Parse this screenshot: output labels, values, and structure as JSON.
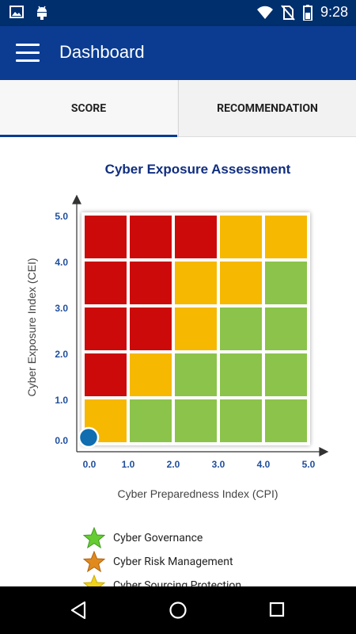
{
  "status_bar": {
    "time": "9:28",
    "icons": [
      "image-icon",
      "android-icon",
      "wifi-icon",
      "no-sim-icon",
      "battery-icon"
    ]
  },
  "app_bar": {
    "title": "Dashboard",
    "menu_icon": "hamburger-menu-icon"
  },
  "tabs": [
    {
      "label": "SCORE",
      "selected": true
    },
    {
      "label": "RECOMMENDATION",
      "selected": false
    }
  ],
  "chart_data": {
    "type": "heatmap",
    "title": "Cyber Exposure Assessment",
    "xlabel": "Cyber Preparedness Index (CPI)",
    "ylabel": "Cyber Exposure Index (CEI)",
    "xlim": [
      0,
      5
    ],
    "ylim": [
      0,
      5
    ],
    "x_ticks": [
      "0.0",
      "1.0",
      "2.0",
      "3.0",
      "4.0",
      "5.0"
    ],
    "y_ticks": [
      "0.0",
      "1.0",
      "2.0",
      "3.0",
      "4.0",
      "5.0"
    ],
    "colors": {
      "red": "#cc0a0a",
      "yellow": "#f6b800",
      "green": "#8cc34a"
    },
    "grid_rows_top_to_bottom": [
      [
        "red",
        "red",
        "red",
        "yellow",
        "yellow"
      ],
      [
        "red",
        "red",
        "yellow",
        "yellow",
        "green"
      ],
      [
        "red",
        "red",
        "yellow",
        "green",
        "green"
      ],
      [
        "red",
        "yellow",
        "green",
        "green",
        "green"
      ],
      [
        "yellow",
        "green",
        "green",
        "green",
        "green"
      ]
    ],
    "marker": {
      "x": 0.0,
      "y": 0.0,
      "color": "#0f6db0"
    }
  },
  "legend": [
    {
      "label": "Cyber Governance",
      "icon": "green-star-icon",
      "color": "#66cc33"
    },
    {
      "label": "Cyber Risk Management",
      "icon": "orange-star-icon",
      "color": "#e08a1e"
    },
    {
      "label": "Cyber Sourcing Protection",
      "icon": "yellow-star-icon",
      "color": "#f2d21a"
    }
  ],
  "nav_bar": {
    "buttons": [
      "back-icon",
      "home-icon",
      "recents-icon"
    ]
  }
}
